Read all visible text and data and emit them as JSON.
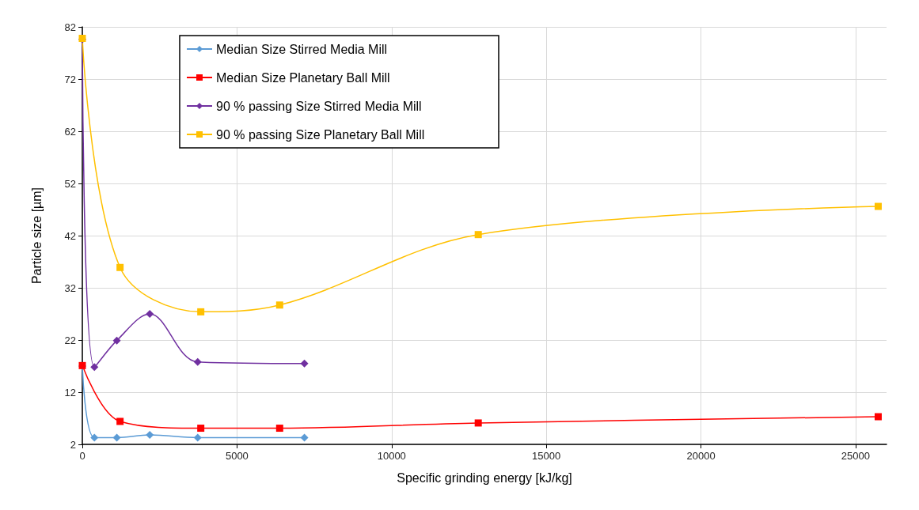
{
  "chart_data": {
    "type": "line",
    "xlabel": "Specific grinding energy [kJ/kg]",
    "ylabel": "Particle size [µm]",
    "xlim": [
      0,
      26000
    ],
    "xticks": [
      0,
      5000,
      10000,
      15000,
      20000,
      25000
    ],
    "ylim": [
      2,
      82
    ],
    "yticks": [
      2,
      12,
      22,
      32,
      42,
      52,
      62,
      72,
      82
    ],
    "grid": true,
    "legend": "top left",
    "line_style": "solid",
    "series": [
      {
        "name": "Median Size Stirred Media Mill",
        "color": "#5b9bd5",
        "marker": "diamond",
        "x": [
          0,
          390,
          1115,
          2180,
          3730,
          7180
        ],
        "values": [
          17,
          3.3,
          3.3,
          3.8,
          3.3,
          3.3
        ]
      },
      {
        "name": "Median Size Planetary Ball Mill",
        "color": "#ff0000",
        "marker": "square",
        "x": [
          0,
          1220,
          3830,
          6380,
          12800,
          25730
        ],
        "values": [
          17.1,
          6.4,
          5.1,
          5.1,
          6.1,
          7.3
        ]
      },
      {
        "name": "90 % passing Size Stirred Media Mill",
        "color": "#7030a0",
        "marker": "diamond",
        "x": [
          0,
          390,
          1115,
          2180,
          3730,
          7180
        ],
        "values": [
          79.6,
          16.8,
          21.9,
          27,
          17.8,
          17.5
        ]
      },
      {
        "name": "90 % passing Size Planetary Ball Mill",
        "color": "#ffc000",
        "marker": "square",
        "x": [
          0,
          1220,
          3830,
          6380,
          12800,
          25730
        ],
        "values": [
          79.8,
          35.9,
          27.4,
          28.7,
          42.2,
          47.6
        ]
      }
    ]
  }
}
